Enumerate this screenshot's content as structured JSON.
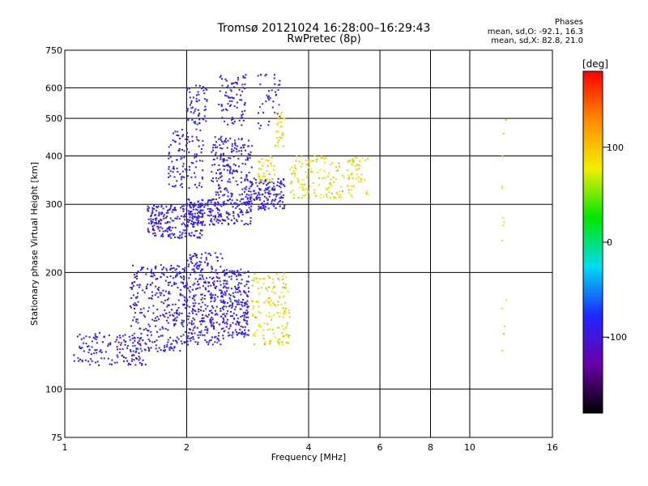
{
  "header": {
    "title": "Tromsø 20121024 16:28:00–16:29:43",
    "subtitle": "RwPretec (8p)",
    "stats_title": "Phases",
    "stats_o": "mean, sd,O: -92.1, 16.3",
    "stats_x": "mean, sd,X:  82.8, 21.0"
  },
  "chart_data": {
    "type": "scatter",
    "xlabel": "Frequency [MHz]",
    "ylabel": "Stationary phase Virtual Height [km]",
    "xscale": "log",
    "yscale": "log",
    "xlim": [
      1,
      16
    ],
    "ylim": [
      75,
      750
    ],
    "x_ticks": [
      1,
      2,
      4,
      6,
      8,
      10,
      16
    ],
    "x_tick_labels": [
      "1",
      "2",
      "4",
      "6",
      "8",
      "10",
      "16"
    ],
    "y_ticks": [
      75,
      100,
      200,
      300,
      400,
      500,
      600,
      750
    ],
    "y_tick_labels": [
      "75",
      "100",
      "200",
      "300",
      "400",
      "500",
      "600",
      "750"
    ],
    "grid": true,
    "colorbar": {
      "label": "[deg]",
      "range": [
        -180,
        180
      ],
      "ticks": [
        -100,
        0,
        100
      ],
      "tick_labels": [
        "-100",
        "0",
        "100"
      ],
      "colors": [
        "#000000",
        "#6a00a8",
        "#1e28ff",
        "#00dcf0",
        "#00e600",
        "#f0f000",
        "#ff8c00",
        "#ff0000"
      ]
    },
    "series": [
      {
        "name": "O",
        "phase_mean": -92.1,
        "phase_sd": 16.3,
        "clusters": [
          {
            "x": [
              1.05,
              1.6
            ],
            "y": [
              115,
              140
            ],
            "n": 140
          },
          {
            "x": [
              1.45,
              2.0
            ],
            "y": [
              125,
              210
            ],
            "n": 320
          },
          {
            "x": [
              2.0,
              2.45
            ],
            "y": [
              130,
              225
            ],
            "n": 300
          },
          {
            "x": [
              2.45,
              2.85
            ],
            "y": [
              135,
              205
            ],
            "n": 220
          },
          {
            "x": [
              1.6,
              2.2
            ],
            "y": [
              245,
              300
            ],
            "n": 240
          },
          {
            "x": [
              2.0,
              2.9
            ],
            "y": [
              265,
              310
            ],
            "n": 200
          },
          {
            "x": [
              1.8,
              2.2
            ],
            "y": [
              330,
              470
            ],
            "n": 110
          },
          {
            "x": [
              2.0,
              2.25
            ],
            "y": [
              480,
              610
            ],
            "n": 60
          },
          {
            "x": [
              2.3,
              2.9
            ],
            "y": [
              300,
              450
            ],
            "n": 200
          },
          {
            "x": [
              2.4,
              2.8
            ],
            "y": [
              480,
              650
            ],
            "n": 80
          },
          {
            "x": [
              2.8,
              3.5
            ],
            "y": [
              290,
              350
            ],
            "n": 160
          },
          {
            "x": [
              3.0,
              3.4
            ],
            "y": [
              470,
              650
            ],
            "n": 40
          }
        ]
      },
      {
        "name": "X",
        "phase_mean": 82.8,
        "phase_sd": 21.0,
        "clusters": [
          {
            "x": [
              2.9,
              3.6
            ],
            "y": [
              130,
              200
            ],
            "n": 150
          },
          {
            "x": [
              3.0,
              3.3
            ],
            "y": [
              340,
              400
            ],
            "n": 40
          },
          {
            "x": [
              3.6,
              5.6
            ],
            "y": [
              310,
              400
            ],
            "n": 180
          },
          {
            "x": [
              3.3,
              3.5
            ],
            "y": [
              420,
              530
            ],
            "n": 30
          },
          {
            "x": [
              12.0,
              12.3
            ],
            "y": [
              110,
              500
            ],
            "n": 14
          }
        ]
      }
    ]
  }
}
